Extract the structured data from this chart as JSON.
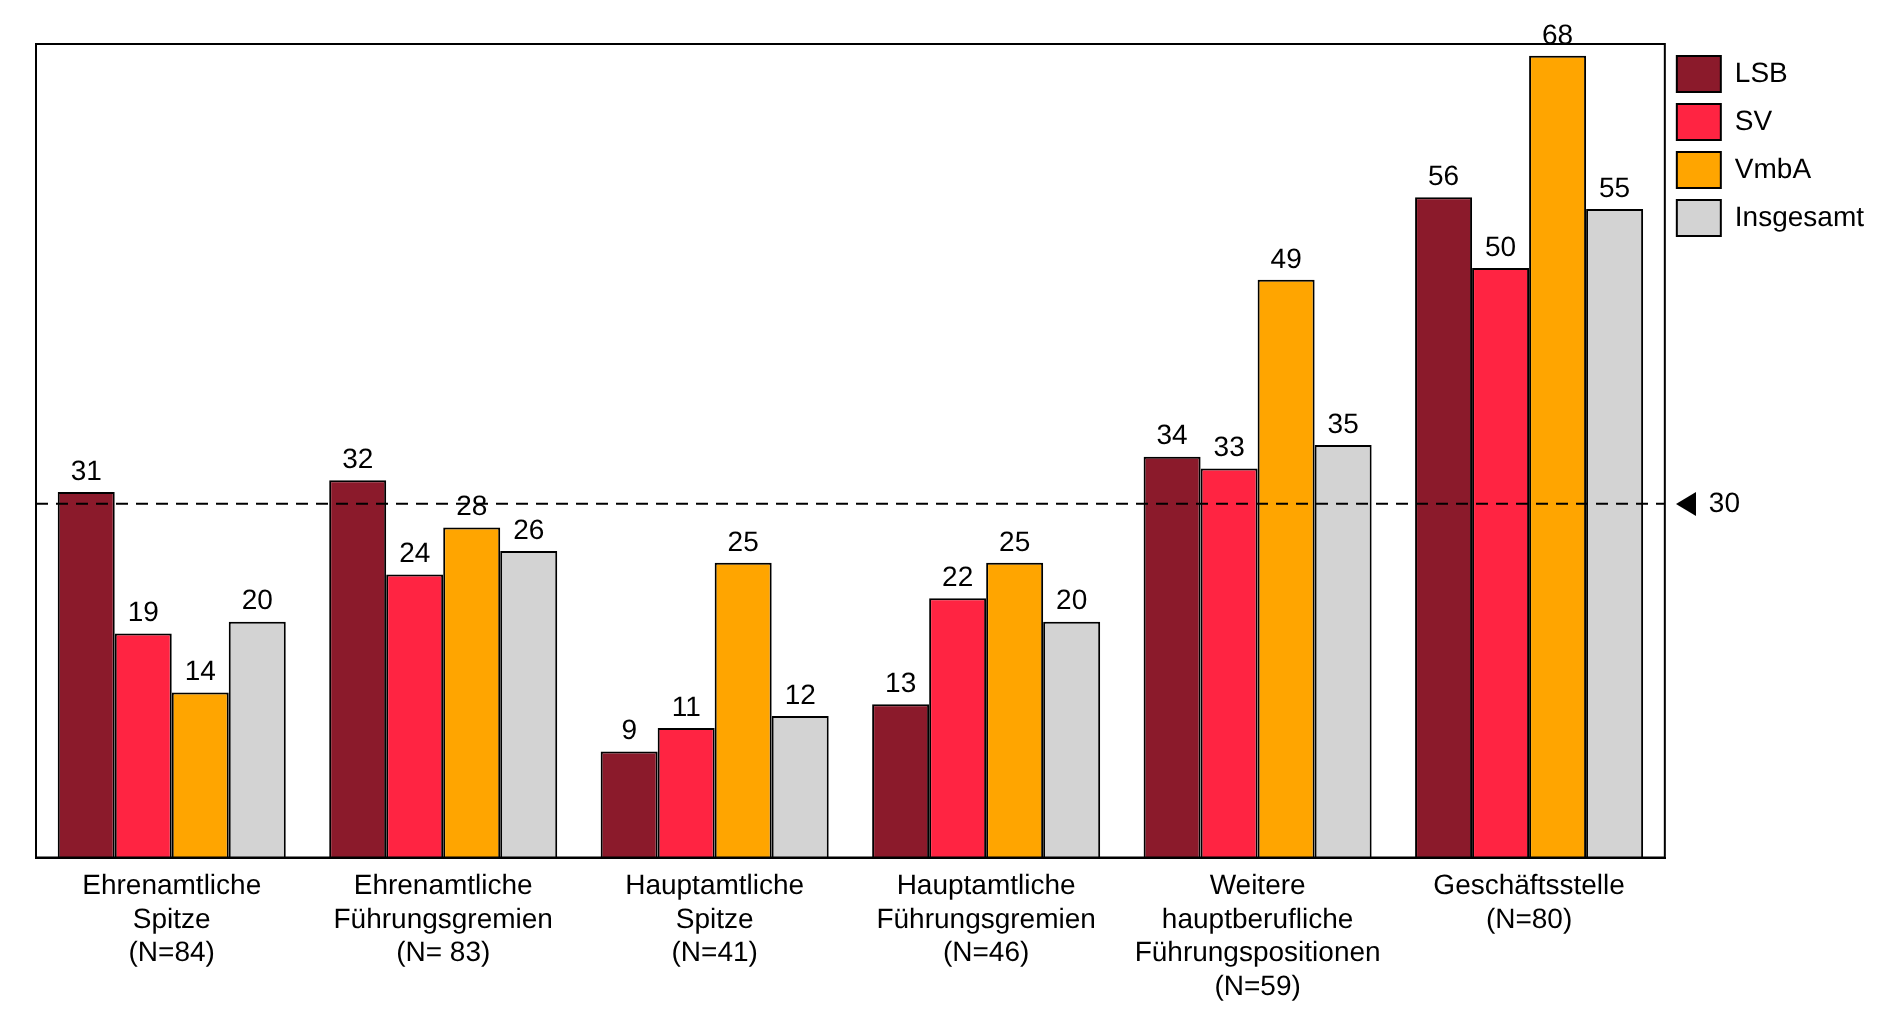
{
  "chart_data": {
    "type": "bar",
    "categories": [
      "Ehrenamtliche\nSpitze\n(N=84)",
      "Ehrenamtliche\nFührungsgremien\n(N= 83)",
      "Hauptamtliche\nSpitze\n(N=41)",
      "Hauptamtliche\nFührungsgremien\n(N=46)",
      "Weitere\nhauptberufliche\nFührungspositionen\n(N=59)",
      "Geschäftsstelle\n(N=80)"
    ],
    "series": [
      {
        "name": "LSB",
        "color": "#8b1a2b",
        "values": [
          31,
          32,
          9,
          13,
          34,
          56
        ]
      },
      {
        "name": "SV",
        "color": "#ff2442",
        "values": [
          19,
          24,
          11,
          22,
          33,
          50
        ]
      },
      {
        "name": "VmbA",
        "color": "#ffa500",
        "values": [
          14,
          28,
          25,
          25,
          49,
          68
        ]
      },
      {
        "name": "Insgesamt",
        "color": "#d3d3d3",
        "values": [
          20,
          26,
          12,
          20,
          35,
          55
        ]
      }
    ],
    "ylim": [
      0,
      69
    ],
    "tick_labels": "x",
    "grid": false,
    "legend": "top right",
    "data_labels": true,
    "ref_lines": [
      {
        "axis": "y",
        "value": 30,
        "label": "30",
        "line_style": "dashed",
        "color": "#000000"
      }
    ]
  }
}
